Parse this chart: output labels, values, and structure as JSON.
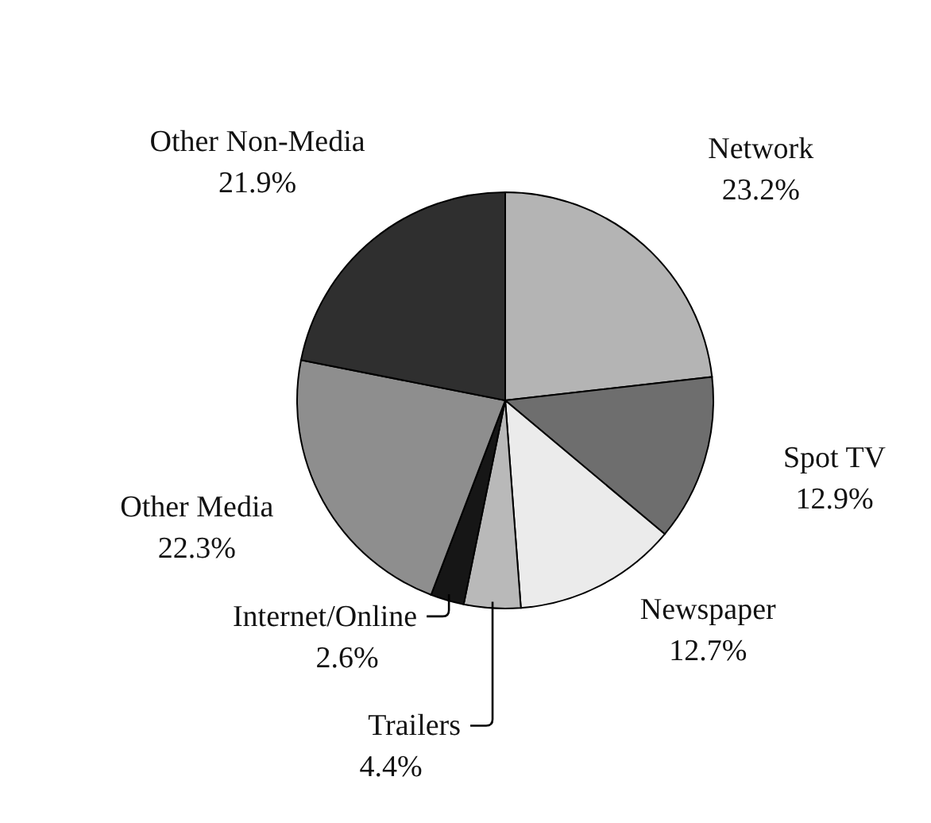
{
  "chart_data": {
    "type": "pie",
    "categories": [
      "Network",
      "Spot TV",
      "Newspaper",
      "Trailers",
      "Internet/Online",
      "Other Media",
      "Other Non-Media"
    ],
    "values": [
      23.2,
      12.9,
      12.7,
      4.4,
      2.6,
      22.3,
      21.9
    ],
    "value_labels": [
      "23.2%",
      "12.9%",
      "12.7%",
      "4.4%",
      "2.6%",
      "22.3%",
      "21.9%"
    ],
    "colors": [
      "#b4b4b4",
      "#6e6e6e",
      "#ebebeb",
      "#b9b9b9",
      "#161616",
      "#8e8e8e",
      "#2f2f2f"
    ],
    "legend": false
  }
}
